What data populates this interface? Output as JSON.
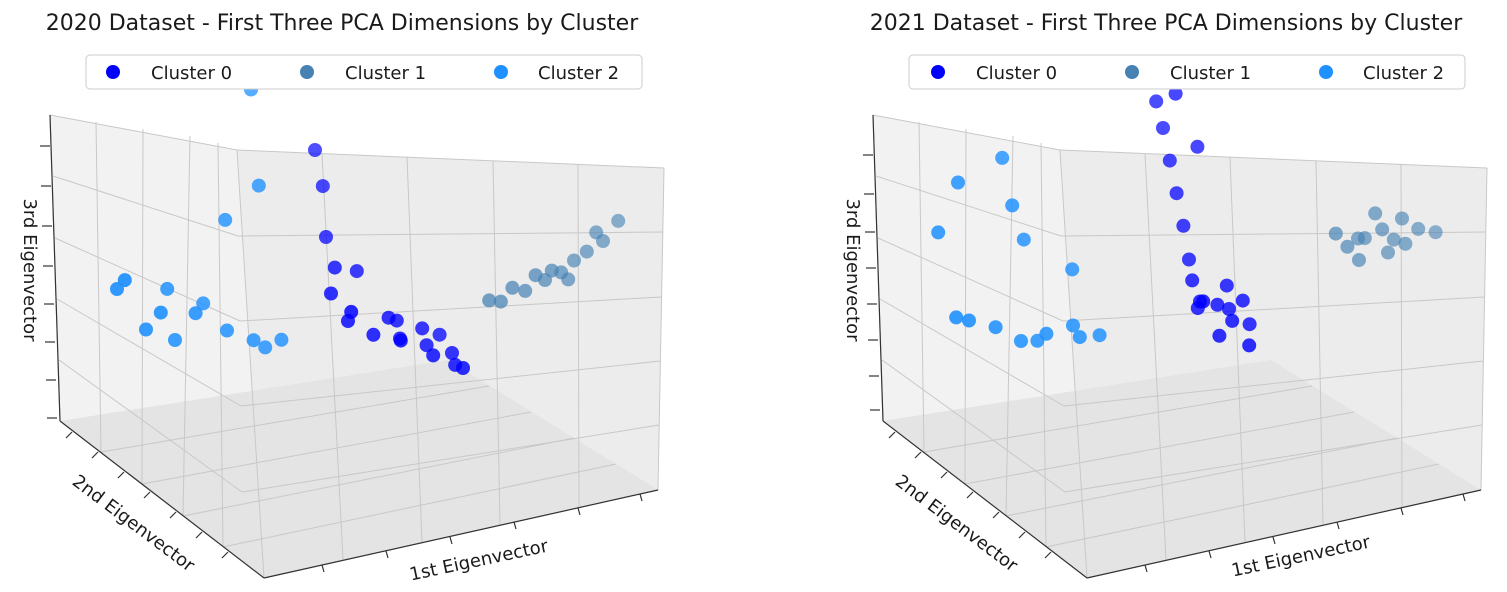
{
  "chart_data": [
    {
      "type": "scatter",
      "projection": "3d",
      "title": "2020 Dataset - First Three PCA Dimensions by Cluster",
      "xlabel": "1st Eigenvector",
      "ylabel": "2nd Eigenvector",
      "zlabel": "3rd Eigenvector",
      "tick_labels": "hidden",
      "grid": true,
      "legend": "top-center",
      "series": [
        {
          "name": "Cluster 0",
          "color": "#0000ff",
          "points": [
            [
              0.5,
              0.4,
              0.25
            ],
            [
              0.55,
              0.42,
              0.2
            ],
            [
              0.6,
              0.45,
              0.18
            ],
            [
              0.65,
              0.48,
              0.15
            ],
            [
              0.7,
              0.5,
              0.12
            ],
            [
              0.58,
              0.5,
              0.22
            ],
            [
              0.62,
              0.38,
              0.2
            ],
            [
              0.68,
              0.42,
              0.14
            ],
            [
              0.72,
              0.45,
              0.1
            ],
            [
              0.52,
              0.35,
              0.3
            ],
            [
              0.45,
              0.45,
              0.32
            ],
            [
              0.48,
              0.55,
              0.36
            ],
            [
              0.4,
              0.6,
              0.45
            ],
            [
              0.38,
              0.65,
              0.6
            ],
            [
              0.35,
              0.7,
              0.7
            ],
            [
              0.66,
              0.55,
              0.16
            ],
            [
              0.75,
              0.4,
              0.11
            ],
            [
              0.57,
              0.47,
              0.24
            ],
            [
              0.63,
              0.52,
              0.19
            ],
            [
              0.44,
              0.52,
              0.38
            ]
          ]
        },
        {
          "name": "Cluster 1",
          "color": "#4682b4",
          "points": [
            [
              0.85,
              0.7,
              0.3
            ],
            [
              0.88,
              0.72,
              0.32
            ],
            [
              0.9,
              0.75,
              0.35
            ],
            [
              0.92,
              0.78,
              0.37
            ],
            [
              0.95,
              0.8,
              0.4
            ],
            [
              0.82,
              0.65,
              0.28
            ],
            [
              0.8,
              0.62,
              0.3
            ],
            [
              0.78,
              0.6,
              0.26
            ],
            [
              0.87,
              0.68,
              0.34
            ],
            [
              0.93,
              0.82,
              0.42
            ],
            [
              0.97,
              0.85,
              0.45
            ],
            [
              0.84,
              0.66,
              0.33
            ],
            [
              0.89,
              0.74,
              0.29
            ],
            [
              0.76,
              0.58,
              0.27
            ]
          ]
        },
        {
          "name": "Cluster 2",
          "color": "#1e90ff",
          "points": [
            [
              0.15,
              0.3,
              0.2
            ],
            [
              0.1,
              0.25,
              0.25
            ],
            [
              0.2,
              0.28,
              0.3
            ],
            [
              0.25,
              0.35,
              0.22
            ],
            [
              0.3,
              0.38,
              0.18
            ],
            [
              0.05,
              0.2,
              0.4
            ],
            [
              0.08,
              0.15,
              0.45
            ],
            [
              0.12,
              0.35,
              0.35
            ],
            [
              0.18,
              0.42,
              0.28
            ],
            [
              0.22,
              0.45,
              0.55
            ],
            [
              0.28,
              0.5,
              0.65
            ],
            [
              0.25,
              0.55,
              0.95
            ],
            [
              0.32,
              0.4,
              0.15
            ],
            [
              0.35,
              0.42,
              0.17
            ],
            [
              0.14,
              0.22,
              0.32
            ]
          ]
        }
      ]
    },
    {
      "type": "scatter",
      "projection": "3d",
      "title": "2021 Dataset - First Three PCA Dimensions by Cluster",
      "xlabel": "1st Eigenvector",
      "ylabel": "2nd Eigenvector",
      "zlabel": "3rd Eigenvector",
      "tick_labels": "hidden",
      "grid": true,
      "legend": "top-center",
      "series": [
        {
          "name": "Cluster 0",
          "color": "#0000ff",
          "points": [
            [
              0.55,
              0.45,
              0.3
            ],
            [
              0.58,
              0.48,
              0.28
            ],
            [
              0.6,
              0.5,
              0.26
            ],
            [
              0.62,
              0.45,
              0.24
            ],
            [
              0.57,
              0.4,
              0.32
            ],
            [
              0.65,
              0.48,
              0.22
            ],
            [
              0.52,
              0.5,
              0.35
            ],
            [
              0.5,
              0.55,
              0.4
            ],
            [
              0.48,
              0.58,
              0.5
            ],
            [
              0.46,
              0.6,
              0.6
            ],
            [
              0.44,
              0.62,
              0.7
            ],
            [
              0.42,
              0.64,
              0.8
            ],
            [
              0.4,
              0.66,
              0.88
            ],
            [
              0.45,
              0.63,
              0.92
            ],
            [
              0.5,
              0.62,
              0.75
            ],
            [
              0.6,
              0.42,
              0.2
            ],
            [
              0.67,
              0.4,
              0.18
            ],
            [
              0.54,
              0.47,
              0.27
            ],
            [
              0.59,
              0.52,
              0.33
            ],
            [
              0.63,
              0.5,
              0.29
            ]
          ]
        },
        {
          "name": "Cluster 1",
          "color": "#4682b4",
          "points": [
            [
              0.8,
              0.72,
              0.4
            ],
            [
              0.83,
              0.75,
              0.42
            ],
            [
              0.86,
              0.78,
              0.44
            ],
            [
              0.88,
              0.8,
              0.4
            ],
            [
              0.9,
              0.82,
              0.38
            ],
            [
              0.78,
              0.7,
              0.45
            ],
            [
              0.85,
              0.76,
              0.5
            ],
            [
              0.92,
              0.85,
              0.42
            ],
            [
              0.95,
              0.88,
              0.4
            ],
            [
              0.82,
              0.74,
              0.35
            ],
            [
              0.87,
              0.79,
              0.36
            ],
            [
              0.75,
              0.85,
              0.95
            ],
            [
              0.89,
              0.83,
              0.46
            ],
            [
              0.81,
              0.77,
              0.41
            ]
          ]
        },
        {
          "name": "Cluster 2",
          "color": "#1e90ff",
          "points": [
            [
              0.2,
              0.3,
              0.2
            ],
            [
              0.25,
              0.32,
              0.22
            ],
            [
              0.3,
              0.35,
              0.24
            ],
            [
              0.15,
              0.28,
              0.25
            ],
            [
              0.1,
              0.25,
              0.28
            ],
            [
              0.35,
              0.38,
              0.2
            ],
            [
              0.05,
              0.35,
              0.7
            ],
            [
              0.02,
              0.3,
              0.55
            ],
            [
              0.12,
              0.45,
              0.75
            ],
            [
              0.18,
              0.4,
              0.5
            ],
            [
              0.22,
              0.36,
              0.18
            ],
            [
              0.28,
              0.42,
              0.4
            ],
            [
              0.08,
              0.22,
              0.3
            ],
            [
              0.32,
              0.33,
              0.21
            ],
            [
              0.16,
              0.38,
              0.62
            ]
          ]
        }
      ]
    }
  ]
}
